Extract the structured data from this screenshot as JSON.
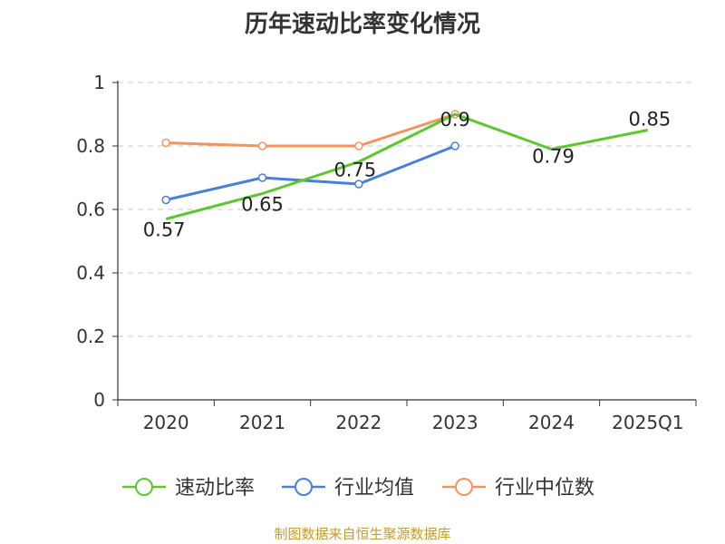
{
  "chart_data": {
    "type": "line",
    "title": "历年速动比率变化情况",
    "categories": [
      "2020",
      "2021",
      "2022",
      "2023",
      "2024",
      "2025Q1"
    ],
    "ylim": [
      0,
      1
    ],
    "yticks": [
      "0",
      "0.2",
      "0.4",
      "0.6",
      "0.8",
      "1"
    ],
    "grid": true,
    "legend_position": "bottom",
    "series": [
      {
        "name": "速动比率",
        "color": "#5cc72e",
        "values": [
          0.57,
          0.65,
          0.75,
          0.9,
          0.79,
          0.85
        ],
        "labels": [
          "0.57",
          "0.65",
          "0.75",
          "0.9",
          "0.79",
          "0.85"
        ]
      },
      {
        "name": "行业均值",
        "color": "#4a7fd9",
        "values": [
          0.63,
          0.7,
          0.68,
          0.8,
          null,
          null
        ]
      },
      {
        "name": "行业中位数",
        "color": "#f4935c",
        "values": [
          0.81,
          0.8,
          0.8,
          0.9,
          null,
          null
        ]
      }
    ],
    "source": "制图数据来自恒生聚源数据库"
  }
}
